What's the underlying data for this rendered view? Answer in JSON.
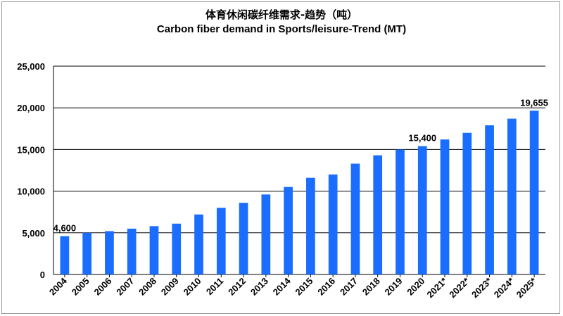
{
  "chart_data": {
    "type": "bar",
    "title_cn": "体育休闲碳纤维需求-趋势（吨）",
    "title": "Carbon fiber demand in Sports/leisure-Trend (MT)",
    "xlabel": "",
    "ylabel": "",
    "ylim": [
      0,
      25000
    ],
    "yticks": [
      0,
      5000,
      10000,
      15000,
      20000,
      25000
    ],
    "ytick_labels": [
      "0",
      "5,000",
      "10,000",
      "15,000",
      "20,000",
      "25,000"
    ],
    "grid": true,
    "bar_color": "#1a6dff",
    "categories": [
      "2004",
      "2005",
      "2006",
      "2007",
      "2008",
      "2009",
      "2010",
      "2011",
      "2012",
      "2013",
      "2014",
      "2015",
      "2016",
      "2017",
      "2018",
      "2019",
      "2020",
      "2021*",
      "2022*",
      "2023*",
      "2024*",
      "2025*"
    ],
    "values": [
      4600,
      5000,
      5200,
      5500,
      5800,
      6100,
      7200,
      8000,
      8600,
      9600,
      10500,
      11600,
      12000,
      13300,
      14300,
      15000,
      15400,
      16200,
      17000,
      17900,
      18700,
      19655
    ],
    "data_labels": [
      {
        "index": 0,
        "text": "4,600"
      },
      {
        "index": 16,
        "text": "15,400"
      },
      {
        "index": 21,
        "text": "19,655"
      }
    ]
  }
}
